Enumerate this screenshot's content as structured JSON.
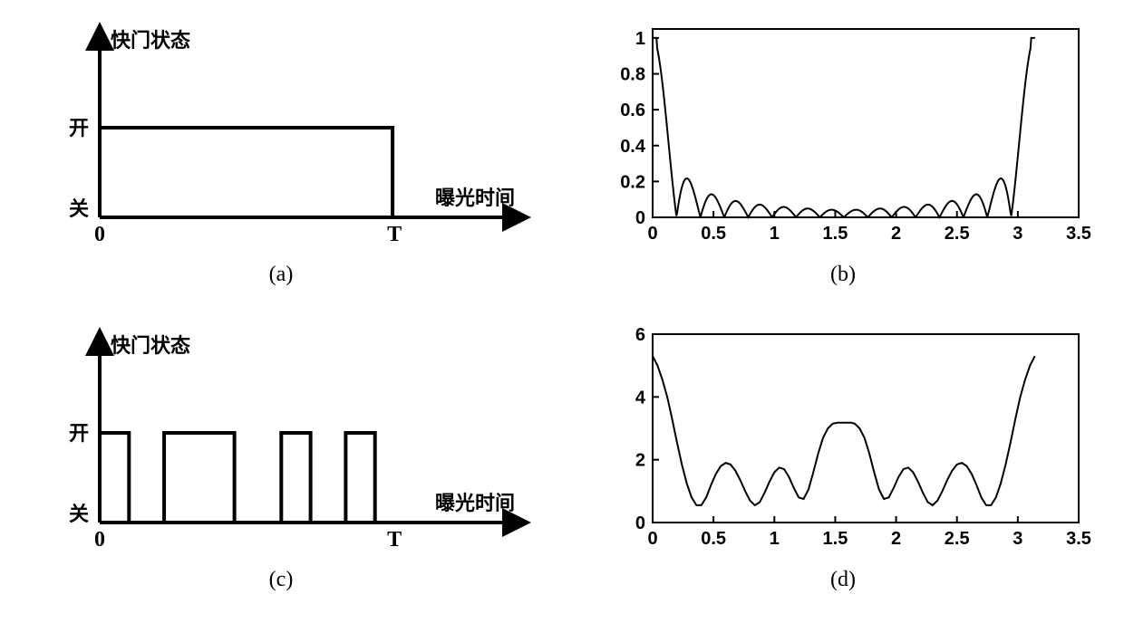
{
  "global": {
    "background": "#ffffff",
    "line_color": "#000000",
    "text_color": "#000000",
    "font_family_cn": "SimSun",
    "font_family_latin": "Times New Roman"
  },
  "panel_a": {
    "label": "(a)",
    "type": "schematic-step",
    "y_axis_label": "快门状态",
    "x_axis_label": "曝光时间",
    "y_tick_labels": [
      "开",
      "关"
    ],
    "x_tick_labels": [
      "0",
      "T"
    ],
    "y_levels": {
      "low": 0,
      "high": 1
    },
    "x_range": [
      0,
      1.3
    ],
    "pulses": [
      {
        "start": 0,
        "end": 1.0
      }
    ],
    "line_width": 4,
    "arrow_axes": true
  },
  "panel_b": {
    "label": "(b)",
    "type": "line",
    "xlim": [
      0,
      3.5
    ],
    "ylim": [
      0,
      1.05
    ],
    "xticks": [
      0,
      0.5,
      1,
      1.5,
      2,
      2.5,
      3,
      3.5
    ],
    "yticks": [
      0,
      0.2,
      0.4,
      0.6,
      0.8,
      1
    ],
    "xtick_labels": [
      "0",
      "0.5",
      "1",
      "1.5",
      "2",
      "2.5",
      "3",
      "3.5"
    ],
    "ytick_labels": [
      "0",
      "0.2",
      "0.4",
      "0.6",
      "0.8",
      "1"
    ],
    "line_width": 2,
    "curve_kind": "sinc_mag",
    "curve_params": {
      "nodes": 16,
      "xmax_data": 3.14159
    },
    "axes_box": true,
    "tick_fontsize": 20
  },
  "panel_c": {
    "label": "(c)",
    "type": "schematic-step",
    "y_axis_label": "快门状态",
    "x_axis_label": "曝光时间",
    "y_tick_labels": [
      "开",
      "关"
    ],
    "x_tick_labels": [
      "0",
      "T"
    ],
    "y_levels": {
      "low": 0,
      "high": 1
    },
    "x_range": [
      0,
      1.3
    ],
    "pulses": [
      {
        "start": 0.0,
        "end": 0.1
      },
      {
        "start": 0.22,
        "end": 0.46
      },
      {
        "start": 0.62,
        "end": 0.72
      },
      {
        "start": 0.84,
        "end": 0.94
      }
    ],
    "T_pos": 1.0,
    "line_width": 4,
    "arrow_axes": true
  },
  "panel_d": {
    "label": "(d)",
    "type": "line",
    "xlim": [
      0,
      3.5
    ],
    "ylim": [
      0,
      6
    ],
    "xticks": [
      0,
      0.5,
      1,
      1.5,
      2,
      2.5,
      3,
      3.5
    ],
    "yticks": [
      0,
      2,
      4,
      6
    ],
    "xtick_labels": [
      "0",
      "0.5",
      "1",
      "1.5",
      "2",
      "2.5",
      "3",
      "3.5"
    ],
    "ytick_labels": [
      "0",
      "2",
      "4",
      "6"
    ],
    "line_width": 2,
    "axes_box": true,
    "tick_fontsize": 20,
    "curve_points": [
      [
        0.0,
        5.3
      ],
      [
        0.04,
        5.0
      ],
      [
        0.08,
        4.55
      ],
      [
        0.12,
        4.0
      ],
      [
        0.16,
        3.3
      ],
      [
        0.2,
        2.55
      ],
      [
        0.24,
        1.85
      ],
      [
        0.28,
        1.25
      ],
      [
        0.32,
        0.8
      ],
      [
        0.36,
        0.55
      ],
      [
        0.4,
        0.55
      ],
      [
        0.44,
        0.8
      ],
      [
        0.48,
        1.2
      ],
      [
        0.52,
        1.55
      ],
      [
        0.56,
        1.8
      ],
      [
        0.6,
        1.9
      ],
      [
        0.64,
        1.85
      ],
      [
        0.68,
        1.65
      ],
      [
        0.72,
        1.35
      ],
      [
        0.76,
        1.0
      ],
      [
        0.8,
        0.7
      ],
      [
        0.84,
        0.55
      ],
      [
        0.88,
        0.65
      ],
      [
        0.92,
        0.95
      ],
      [
        0.96,
        1.3
      ],
      [
        1.0,
        1.6
      ],
      [
        1.04,
        1.75
      ],
      [
        1.08,
        1.7
      ],
      [
        1.12,
        1.45
      ],
      [
        1.16,
        1.1
      ],
      [
        1.2,
        0.8
      ],
      [
        1.24,
        0.75
      ],
      [
        1.28,
        1.05
      ],
      [
        1.32,
        1.6
      ],
      [
        1.36,
        2.2
      ],
      [
        1.4,
        2.7
      ],
      [
        1.44,
        3.0
      ],
      [
        1.48,
        3.15
      ],
      [
        1.52,
        3.18
      ],
      [
        1.55,
        3.18
      ],
      [
        1.59,
        3.18
      ],
      [
        1.63,
        3.18
      ],
      [
        1.66,
        3.15
      ],
      [
        1.7,
        3.0
      ],
      [
        1.74,
        2.7
      ],
      [
        1.78,
        2.2
      ],
      [
        1.82,
        1.6
      ],
      [
        1.86,
        1.05
      ],
      [
        1.9,
        0.75
      ],
      [
        1.94,
        0.8
      ],
      [
        1.98,
        1.1
      ],
      [
        2.02,
        1.45
      ],
      [
        2.06,
        1.7
      ],
      [
        2.1,
        1.75
      ],
      [
        2.14,
        1.6
      ],
      [
        2.18,
        1.3
      ],
      [
        2.22,
        0.95
      ],
      [
        2.26,
        0.65
      ],
      [
        2.3,
        0.55
      ],
      [
        2.34,
        0.7
      ],
      [
        2.38,
        1.0
      ],
      [
        2.42,
        1.35
      ],
      [
        2.46,
        1.65
      ],
      [
        2.5,
        1.85
      ],
      [
        2.54,
        1.9
      ],
      [
        2.58,
        1.8
      ],
      [
        2.62,
        1.55
      ],
      [
        2.66,
        1.2
      ],
      [
        2.7,
        0.8
      ],
      [
        2.74,
        0.55
      ],
      [
        2.78,
        0.55
      ],
      [
        2.82,
        0.8
      ],
      [
        2.86,
        1.25
      ],
      [
        2.9,
        1.85
      ],
      [
        2.94,
        2.55
      ],
      [
        2.98,
        3.3
      ],
      [
        3.02,
        4.0
      ],
      [
        3.06,
        4.55
      ],
      [
        3.1,
        5.0
      ],
      [
        3.14,
        5.3
      ]
    ]
  }
}
